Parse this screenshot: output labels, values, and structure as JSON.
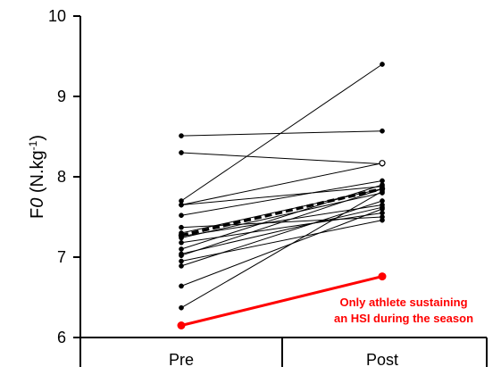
{
  "chart_data": {
    "type": "line",
    "categories": [
      "Pre",
      "Post"
    ],
    "ylabel": {
      "main": "F",
      "italic": "0",
      "unit_pre": " (N.kg",
      "unit_sup": "-1",
      "unit_post": ")"
    },
    "ylim": [
      6,
      10
    ],
    "yticks": [
      6,
      7,
      8,
      9,
      10
    ],
    "grid": false,
    "series": [
      {
        "values": [
          8.51,
          8.57
        ]
      },
      {
        "values": [
          8.3,
          8.16
        ]
      },
      {
        "values": [
          7.7,
          9.4
        ]
      },
      {
        "values": [
          7.65,
          8.17
        ],
        "open_end": true
      },
      {
        "values": [
          7.65,
          7.88
        ]
      },
      {
        "values": [
          7.52,
          7.95
        ]
      },
      {
        "values": [
          7.37,
          7.5
        ]
      },
      {
        "values": [
          7.3,
          7.85
        ]
      },
      {
        "values": [
          7.26,
          7.65
        ]
      },
      {
        "values": [
          7.24,
          7.8
        ]
      },
      {
        "values": [
          7.18,
          7.55
        ]
      },
      {
        "values": [
          7.1,
          7.9
        ]
      },
      {
        "values": [
          7.04,
          7.62
        ]
      },
      {
        "values": [
          7.02,
          7.85
        ]
      },
      {
        "values": [
          6.95,
          7.46
        ]
      },
      {
        "values": [
          6.89,
          7.7
        ]
      },
      {
        "values": [
          6.64,
          7.6
        ]
      },
      {
        "values": [
          6.37,
          7.82
        ]
      }
    ],
    "mean": {
      "values": [
        7.27,
        7.85
      ],
      "style": "dashed"
    },
    "highlight": {
      "values": [
        6.15,
        6.76
      ],
      "color": "#ff0000"
    },
    "annotation": {
      "lines": [
        "Only athlete sustaining",
        "an HSI during the season"
      ],
      "color": "#ff0000"
    }
  }
}
